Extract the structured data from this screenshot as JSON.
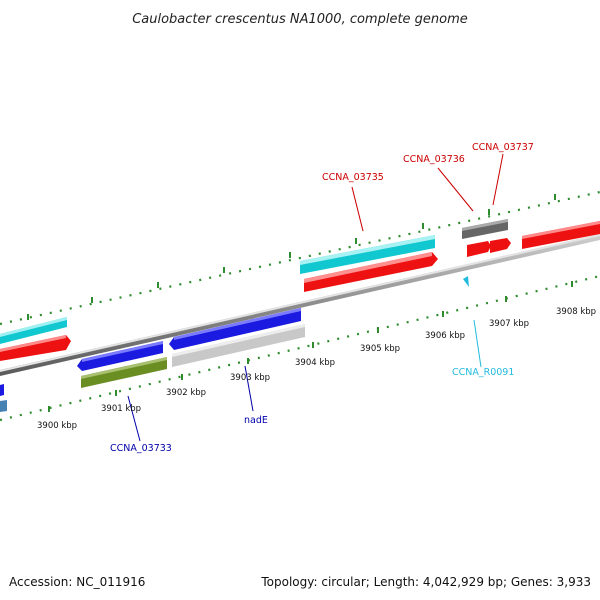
{
  "title": "Caulobacter crescentus NA1000, complete genome",
  "footer": {
    "accession": "Accession: NC_011916",
    "summary": "Topology: circular; Length: 4,042,929 bp; Genes: 3,933"
  },
  "ticks": [
    "3900 kbp",
    "3901 kbp",
    "3902 kbp",
    "3903 kbp",
    "3904 kbp",
    "3905 kbp",
    "3906 kbp",
    "3907 kbp",
    "3908 kbp"
  ],
  "genes": {
    "ccna_03735": "CCNA_03735",
    "ccna_03736": "CCNA_03736",
    "ccna_03737": "CCNA_03737",
    "ccna_03733": "CCNA_03733",
    "nadE": "nadE",
    "ccna_r0091": "CCNA_R0091"
  },
  "colors": {
    "red": "#ee1111",
    "cyan": "#11c8d0",
    "blue": "#1a1ae0",
    "olive": "#6b8e23",
    "gray": "#666666",
    "lightgray": "#c8c8c8",
    "backbone": "#8c8c8c",
    "tick_green": "#2e8b2e",
    "label_red": "#cc0000",
    "label_blue": "#0000aa",
    "label_cyan": "#22bbdd"
  }
}
